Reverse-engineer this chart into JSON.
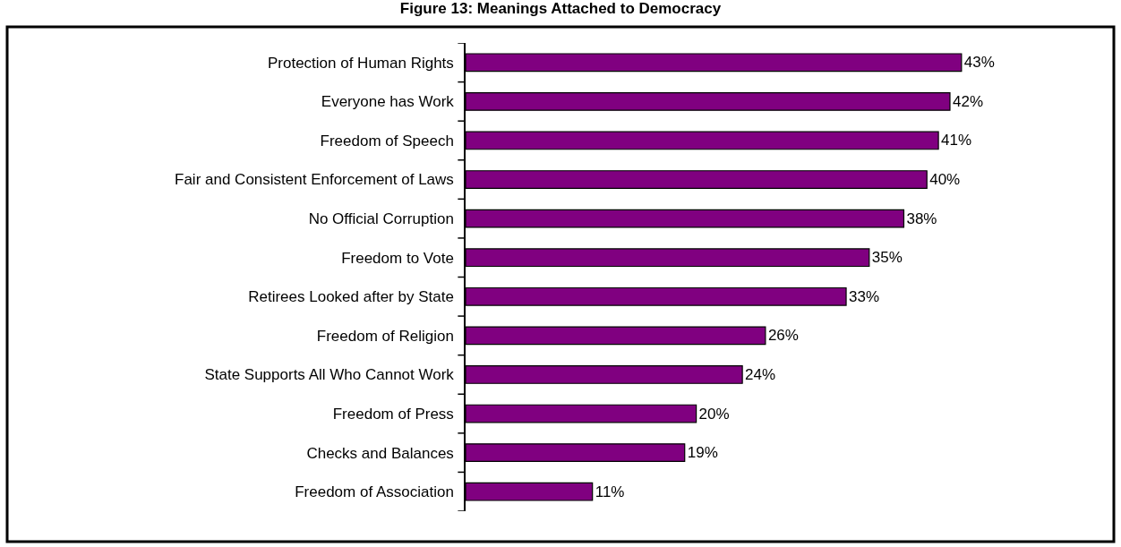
{
  "chart_data": {
    "type": "bar",
    "orientation": "horizontal",
    "title": "Figure 13: Meanings Attached to Democracy",
    "categories": [
      "Protection of Human Rights",
      "Everyone has Work",
      "Freedom of Speech",
      "Fair and Consistent Enforcement of Laws",
      "No Official Corruption",
      "Freedom to Vote",
      "Retirees Looked after by State",
      "Freedom of Religion",
      "State Supports All Who Cannot Work",
      "Freedom of Press",
      "Checks and Balances",
      "Freedom of Association"
    ],
    "values": [
      43,
      42,
      41,
      40,
      38,
      35,
      33,
      26,
      24,
      20,
      19,
      11
    ],
    "value_labels": [
      "43%",
      "42%",
      "41%",
      "40%",
      "38%",
      "35%",
      "33%",
      "26%",
      "24%",
      "20%",
      "19%",
      "11%"
    ],
    "color": "#800080",
    "legend": false
  }
}
